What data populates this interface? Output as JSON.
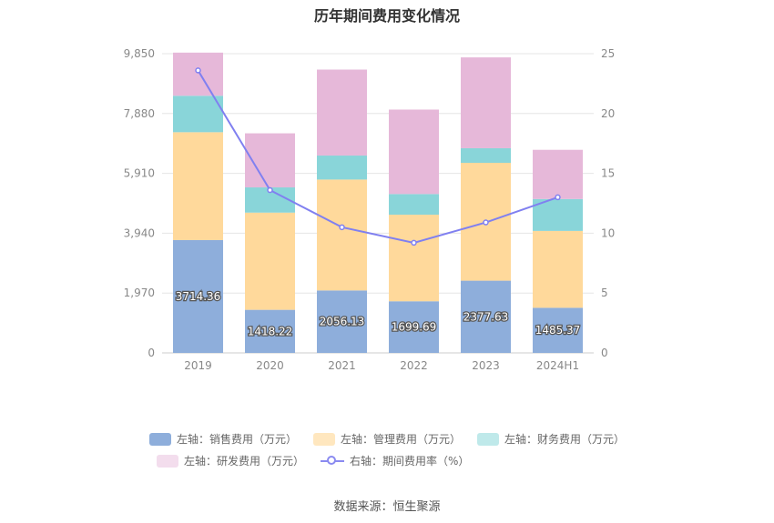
{
  "chart_data": {
    "type": "bar",
    "stacked": true,
    "title": "历年期间费用变化情况",
    "categories": [
      "2019",
      "2020",
      "2021",
      "2022",
      "2023",
      "2024H1"
    ],
    "left_axis": {
      "ticks": [
        "0",
        "1,970",
        "3,940",
        "5,910",
        "7,880",
        "9,850"
      ],
      "range": [
        0,
        9850
      ]
    },
    "right_axis": {
      "ticks": [
        "0",
        "5",
        "10",
        "15",
        "20",
        "25"
      ],
      "range": [
        0,
        25
      ]
    },
    "series": [
      {
        "name": "左轴：销售费用（万元）",
        "color": "#8eaedb",
        "axis": "left",
        "values": [
          3714.36,
          1418.22,
          2056.13,
          1699.69,
          2377.63,
          1485.37
        ],
        "labels": [
          "3714.36",
          "1418.22",
          "2056.13",
          "1699.69",
          "2377.63",
          "1485.37"
        ]
      },
      {
        "name": "左轴：管理费用（万元）",
        "color": "#ffd99b",
        "axis": "left",
        "values": [
          3550,
          3200,
          3650,
          2850,
          3880,
          2530
        ]
      },
      {
        "name": "左轴：财务费用（万元）",
        "color": "#89d5d9",
        "axis": "left",
        "values": [
          1200,
          830,
          790,
          680,
          480,
          1050
        ]
      },
      {
        "name": "左轴：研发费用（万元）",
        "color": "#e6b8d9",
        "axis": "left",
        "values": [
          1420,
          1780,
          2830,
          2780,
          2990,
          1620
        ]
      },
      {
        "name": "右轴：期间费用率（%）",
        "color": "#8080f0",
        "axis": "right",
        "type": "line",
        "values": [
          23.6,
          13.6,
          10.5,
          9.2,
          10.9,
          13.0
        ]
      }
    ],
    "source": "数据来源：恒生聚源"
  }
}
